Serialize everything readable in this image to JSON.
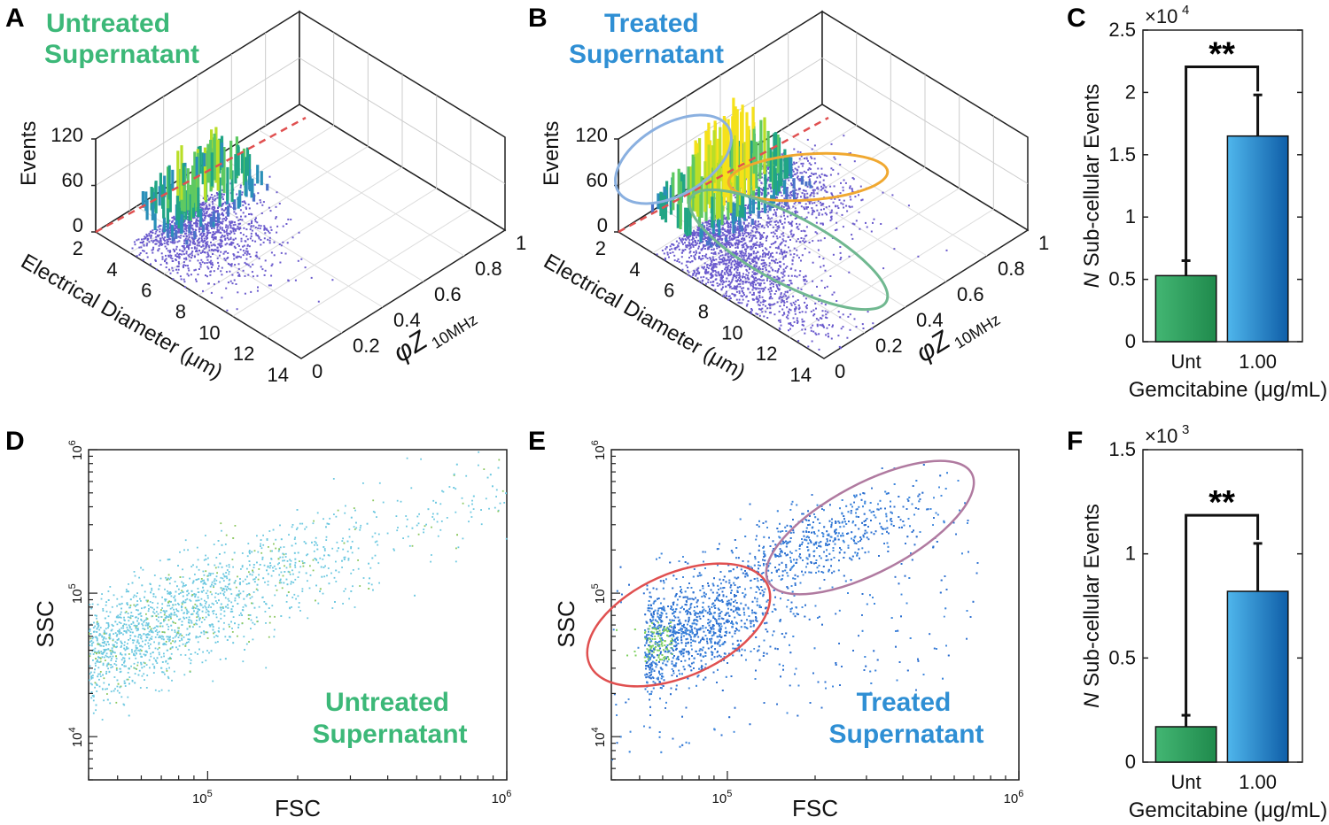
{
  "colors": {
    "green": "#3cb878",
    "blue": "#2f8fd4",
    "bar_green": "#2e9e60",
    "bar_blue": "#1f86d6",
    "events_purple": "#6a5acd",
    "fc_untreated": "#6cc8e0",
    "fc_treated": "#2c6fd0",
    "red_gate": "#e05050",
    "magenta_gate": "#b07aa0",
    "orange_gate": "#f0a830",
    "teal_gate": "#70b890",
    "lightblue_gate": "#8ab0e0"
  },
  "panels": {
    "A": {
      "letter": "A",
      "title_line1": "Untreated",
      "title_line2": "Supernatant",
      "z_label": "Events",
      "z_ticks": [
        "0",
        "60",
        "120"
      ],
      "x_label": "Electrical Diameter (μm)",
      "x_ticks": [
        "2",
        "4",
        "6",
        "8",
        "10",
        "12",
        "14"
      ],
      "y_label": "φZ",
      "y_label_sub": "10MHz",
      "y_ticks": [
        "0",
        "0.2",
        "0.4",
        "0.6",
        "0.8",
        "1"
      ]
    },
    "B": {
      "letter": "B",
      "title_line1": "Treated",
      "title_line2": "Supernatant",
      "z_label": "Events",
      "z_ticks": [
        "0",
        "60",
        "120"
      ],
      "x_label": "Electrical Diameter (μm)",
      "x_ticks": [
        "2",
        "4",
        "6",
        "8",
        "10",
        "12",
        "14"
      ],
      "y_label": "φZ",
      "y_label_sub": "10MHz",
      "y_ticks": [
        "0",
        "0.2",
        "0.4",
        "0.6",
        "0.8",
        "1"
      ]
    },
    "D": {
      "letter": "D",
      "xlabel": "FSC",
      "ylabel": "SSC",
      "label_line1": "Untreated",
      "label_line2": "Supernatant"
    },
    "E": {
      "letter": "E",
      "xlabel": "FSC",
      "ylabel": "SSC",
      "label_line1": "Treated",
      "label_line2": "Supernatant"
    }
  },
  "chart_data": [
    {
      "panel": "C",
      "type": "bar",
      "categories": [
        "Unt",
        "1.00"
      ],
      "values": [
        5300,
        16500
      ],
      "errors": [
        1200,
        3300
      ],
      "xlabel": "Gemcitabine (μg/mL)",
      "ylabel_italic": "N",
      "ylabel": "Sub-cellular Events",
      "ylim": [
        0,
        25000
      ],
      "scale_base": "×10",
      "scale_exp": "4",
      "yticks": [
        "0",
        "0.5",
        "1",
        "1.5",
        "2",
        "2.5"
      ],
      "significance": "**"
    },
    {
      "panel": "F",
      "type": "bar",
      "categories": [
        "Unt",
        "1.00"
      ],
      "values": [
        170,
        820
      ],
      "errors": [
        55,
        230
      ],
      "xlabel": "Gemcitabine (μg/mL)",
      "ylabel_italic": "N",
      "ylabel": "Sub-cellular Events",
      "ylim": [
        0,
        1500
      ],
      "scale_base": "×10",
      "scale_exp": "3",
      "yticks": [
        "0",
        "0.5",
        "1",
        "1.5"
      ],
      "significance": "**"
    },
    {
      "panel": "D",
      "type": "scatter",
      "xscale": "log",
      "yscale": "log",
      "xlim": [
        40000,
        1000000
      ],
      "ylim": [
        5000,
        1000000
      ],
      "xtick_base": "10",
      "xtick_exps": [
        "5",
        "6"
      ],
      "ytick_base": "10",
      "ytick_exps": [
        "4",
        "5",
        "6"
      ]
    },
    {
      "panel": "E",
      "type": "scatter",
      "xscale": "log",
      "yscale": "log",
      "xlim": [
        40000,
        1000000
      ],
      "ylim": [
        5000,
        1000000
      ],
      "xtick_base": "10",
      "xtick_exps": [
        "5",
        "6"
      ],
      "ytick_base": "10",
      "ytick_exps": [
        "4",
        "5",
        "6"
      ]
    }
  ]
}
